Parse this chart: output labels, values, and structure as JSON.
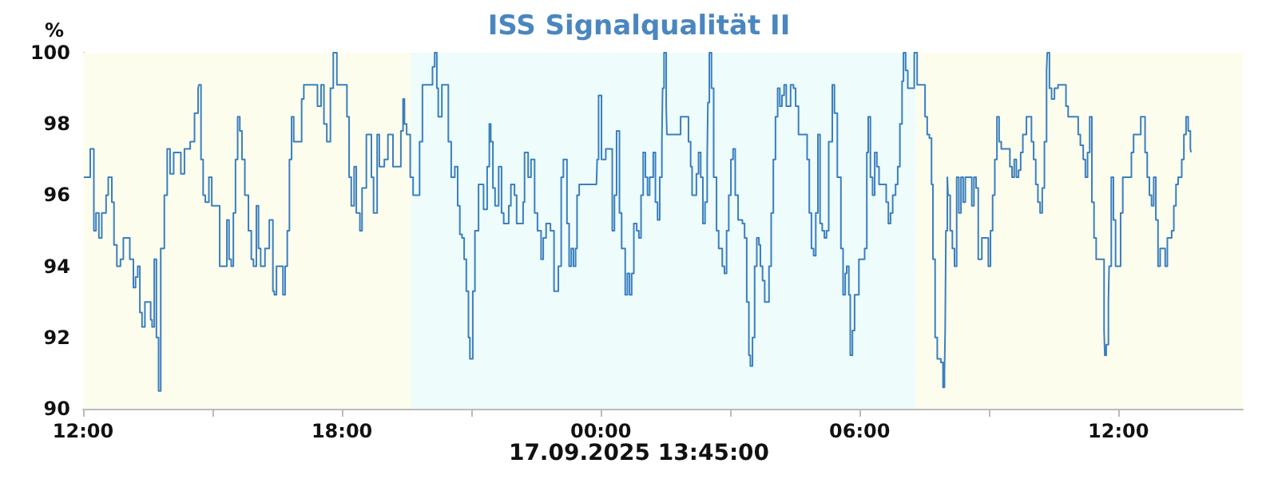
{
  "chart_data": {
    "type": "step",
    "title": "ISS Signalqualität II",
    "ylabel": "%",
    "annotations": [
      "17.09.2025 13:45:00"
    ],
    "xlim": [
      "2025-09-16T12:00",
      "2025-09-17T14:53"
    ],
    "ylim": [
      90,
      100
    ],
    "xticks": [
      {
        "value": "2025-09-16T12:00",
        "label": "12:00"
      },
      {
        "value": "2025-09-16T15:00",
        "label": null
      },
      {
        "value": "2025-09-16T18:00",
        "label": "18:00"
      },
      {
        "value": "2025-09-16T21:00",
        "label": null
      },
      {
        "value": "2025-09-17T00:00",
        "label": "00:00"
      },
      {
        "value": "2025-09-17T03:00",
        "label": null
      },
      {
        "value": "2025-09-17T06:00",
        "label": "06:00"
      },
      {
        "value": "2025-09-17T09:00",
        "label": null
      },
      {
        "value": "2025-09-17T12:00",
        "label": "12:00"
      }
    ],
    "yticks": [
      90,
      {
        "value": 91,
        "label": null
      },
      92,
      {
        "value": 93,
        "label": null
      },
      94,
      {
        "value": 95,
        "label": null
      },
      96,
      {
        "value": 97,
        "label": null
      },
      98,
      {
        "value": 99,
        "label": null
      },
      100
    ],
    "grid": true,
    "marker": "none",
    "line_style": "solid",
    "bands": [
      {
        "axis": "x",
        "from": "2025-09-16T12:00",
        "to": "2025-09-16T19:36",
        "color": "#fdfdee"
      },
      {
        "axis": "x",
        "from": "2025-09-16T19:36",
        "to": "2025-09-17T07:18",
        "color": "#eefcfc"
      },
      {
        "axis": "x",
        "from": "2025-09-17T07:18",
        "to": "2025-09-17T14:53",
        "color": "#fdfdee"
      }
    ],
    "series": [
      {
        "color": "#3a7fbf",
        "x": [
          "2025-09-16T12:01",
          "2025-09-16T12:10",
          "2025-09-16T12:15",
          "2025-09-16T12:18",
          "2025-09-16T12:22",
          "2025-09-16T12:26",
          "2025-09-16T12:32",
          "2025-09-16T12:35",
          "2025-09-16T12:40",
          "2025-09-16T12:43",
          "2025-09-16T12:47",
          "2025-09-16T12:52",
          "2025-09-16T12:56",
          "2025-09-16T13:01",
          "2025-09-16T13:05",
          "2025-09-16T13:10",
          "2025-09-16T13:13",
          "2025-09-16T13:16",
          "2025-09-16T13:19",
          "2025-09-16T13:22",
          "2025-09-16T13:26",
          "2025-09-16T13:31",
          "2025-09-16T13:34",
          "2025-09-16T13:36",
          "2025-09-16T13:39",
          "2025-09-16T13:42",
          "2025-09-16T13:45",
          "2025-09-16T13:48",
          "2025-09-16T13:53",
          "2025-09-16T13:57",
          "2025-09-16T14:01",
          "2025-09-16T14:06",
          "2025-09-16T14:16",
          "2025-09-16T14:21",
          "2025-09-16T14:29",
          "2025-09-16T14:35",
          "2025-09-16T14:40",
          "2025-09-16T14:41",
          "2025-09-16T14:44",
          "2025-09-16T14:47",
          "2025-09-16T14:50",
          "2025-09-16T14:55",
          "2025-09-16T14:59",
          "2025-09-16T15:05",
          "2025-09-16T15:10",
          "2025-09-16T15:16",
          "2025-09-16T15:20",
          "2025-09-16T15:23",
          "2025-09-16T15:26",
          "2025-09-16T15:29",
          "2025-09-16T15:32",
          "2025-09-16T15:35",
          "2025-09-16T15:38",
          "2025-09-16T15:41",
          "2025-09-16T15:45",
          "2025-09-16T15:50",
          "2025-09-16T15:54",
          "2025-09-16T15:57",
          "2025-09-16T16:01",
          "2025-09-16T16:04",
          "2025-09-16T16:07",
          "2025-09-16T16:13",
          "2025-09-16T16:19",
          "2025-09-16T16:24",
          "2025-09-16T16:26",
          "2025-09-16T16:29",
          "2025-09-16T16:34",
          "2025-09-16T16:38",
          "2025-09-16T16:41",
          "2025-09-16T16:44",
          "2025-09-16T16:47",
          "2025-09-16T16:50",
          "2025-09-16T16:53",
          "2025-09-16T16:59",
          "2025-09-16T17:04",
          "2025-09-16T17:07",
          "2025-09-16T17:22",
          "2025-09-16T17:26",
          "2025-09-16T17:31",
          "2025-09-16T17:35",
          "2025-09-16T17:39",
          "2025-09-16T17:44",
          "2025-09-16T17:48",
          "2025-09-16T17:53",
          "2025-09-16T18:04",
          "2025-09-16T18:07",
          "2025-09-16T18:10",
          "2025-09-16T18:13",
          "2025-09-16T18:17",
          "2025-09-16T18:20",
          "2025-09-16T18:25",
          "2025-09-16T18:28",
          "2025-09-16T18:34",
          "2025-09-16T18:38",
          "2025-09-16T18:41",
          "2025-09-16T18:44",
          "2025-09-16T18:49",
          "2025-09-16T18:52",
          "2025-09-16T18:56",
          "2025-09-16T18:59",
          "2025-09-16T19:04",
          "2025-09-16T19:07",
          "2025-09-16T19:11",
          "2025-09-16T19:17",
          "2025-09-16T19:22",
          "2025-09-16T19:25",
          "2025-09-16T19:27",
          "2025-09-16T19:30",
          "2025-09-16T19:35",
          "2025-09-16T19:39",
          "2025-09-16T19:44",
          "2025-09-16T19:48",
          "2025-09-16T19:52",
          "2025-09-16T20:01",
          "2025-09-16T20:06",
          "2025-09-16T20:09",
          "2025-09-16T20:12",
          "2025-09-16T20:14",
          "2025-09-16T20:19",
          "2025-09-16T20:23",
          "2025-09-16T20:28",
          "2025-09-16T20:32",
          "2025-09-16T20:37",
          "2025-09-16T20:41",
          "2025-09-16T20:44",
          "2025-09-16T20:47",
          "2025-09-16T20:50",
          "2025-09-16T20:53",
          "2025-09-16T20:56",
          "2025-09-16T20:58",
          "2025-09-16T21:02",
          "2025-09-16T21:05",
          "2025-09-16T21:10",
          "2025-09-16T21:14",
          "2025-09-16T21:17",
          "2025-09-16T21:22",
          "2025-09-16T21:25",
          "2025-09-16T21:27",
          "2025-09-16T21:30",
          "2025-09-16T21:33",
          "2025-09-16T21:38",
          "2025-09-16T21:42",
          "2025-09-16T21:45",
          "2025-09-16T21:49",
          "2025-09-16T21:52",
          "2025-09-16T21:55",
          "2025-09-16T22:00",
          "2025-09-16T22:03",
          "2025-09-16T22:09",
          "2025-09-16T22:12",
          "2025-09-16T22:14",
          "2025-09-16T22:19",
          "2025-09-16T22:23",
          "2025-09-16T22:28",
          "2025-09-16T22:32",
          "2025-09-16T22:37",
          "2025-09-16T22:40",
          "2025-09-16T22:44",
          "2025-09-16T22:50",
          "2025-09-16T22:55",
          "2025-09-16T22:58",
          "2025-09-16T23:01",
          "2025-09-16T23:05",
          "2025-09-16T23:08",
          "2025-09-16T23:13",
          "2025-09-16T23:16",
          "2025-09-16T23:19",
          "2025-09-16T23:22",
          "2025-09-16T23:25",
          "2025-09-16T23:27",
          "2025-09-16T23:30",
          "2025-09-16T23:54",
          "2025-09-16T23:55",
          "2025-09-16T23:57",
          "2025-09-17T00:01",
          "2025-09-17T00:07",
          "2025-09-17T00:13",
          "2025-09-17T00:16",
          "2025-09-17T00:19",
          "2025-09-17T00:22",
          "2025-09-17T00:26",
          "2025-09-17T00:29",
          "2025-09-17T00:34",
          "2025-09-17T00:37",
          "2025-09-17T00:40",
          "2025-09-17T00:43",
          "2025-09-17T00:46",
          "2025-09-17T00:50",
          "2025-09-17T00:53",
          "2025-09-17T00:56",
          "2025-09-17T00:59",
          "2025-09-17T01:02",
          "2025-09-17T01:05",
          "2025-09-17T01:08",
          "2025-09-17T01:13",
          "2025-09-17T01:16",
          "2025-09-17T01:19",
          "2025-09-17T01:22",
          "2025-09-17T01:25",
          "2025-09-17T01:26",
          "2025-09-17T01:28",
          "2025-09-17T01:31",
          "2025-09-17T01:32",
          "2025-09-17T01:47",
          "2025-09-17T01:51",
          "2025-09-17T01:59",
          "2025-09-17T02:02",
          "2025-09-17T02:05",
          "2025-09-17T02:07",
          "2025-09-17T02:10",
          "2025-09-17T02:13",
          "2025-09-17T02:16",
          "2025-09-17T02:19",
          "2025-09-17T02:22",
          "2025-09-17T02:25",
          "2025-09-17T02:28",
          "2025-09-17T02:29",
          "2025-09-17T02:31",
          "2025-09-17T02:34",
          "2025-09-17T02:37",
          "2025-09-17T02:41",
          "2025-09-17T02:44",
          "2025-09-17T02:49",
          "2025-09-17T02:52",
          "2025-09-17T02:55",
          "2025-09-17T02:58",
          "2025-09-17T03:01",
          "2025-09-17T03:04",
          "2025-09-17T03:07",
          "2025-09-17T03:11",
          "2025-09-17T03:17",
          "2025-09-17T03:20",
          "2025-09-17T03:23",
          "2025-09-17T03:26",
          "2025-09-17T03:28",
          "2025-09-17T03:31",
          "2025-09-17T03:34",
          "2025-09-17T03:37",
          "2025-09-17T03:40",
          "2025-09-17T03:42",
          "2025-09-17T03:45",
          "2025-09-17T03:48",
          "2025-09-17T03:51",
          "2025-09-17T03:54",
          "2025-09-17T03:57",
          "2025-09-17T04:00",
          "2025-09-17T04:03",
          "2025-09-17T04:06",
          "2025-09-17T04:09",
          "2025-09-17T04:12",
          "2025-09-17T04:15",
          "2025-09-17T04:18",
          "2025-09-17T04:21",
          "2025-09-17T04:24",
          "2025-09-17T04:28",
          "2025-09-17T04:31",
          "2025-09-17T04:35",
          "2025-09-17T04:43",
          "2025-09-17T04:47",
          "2025-09-17T04:50",
          "2025-09-17T04:53",
          "2025-09-17T04:56",
          "2025-09-17T04:59",
          "2025-09-17T05:02",
          "2025-09-17T05:05",
          "2025-09-17T05:08",
          "2025-09-17T05:11",
          "2025-09-17T05:14",
          "2025-09-17T05:17",
          "2025-09-17T05:22",
          "2025-09-17T05:25",
          "2025-09-17T05:29",
          "2025-09-17T05:34",
          "2025-09-17T05:37",
          "2025-09-17T05:40",
          "2025-09-17T05:42",
          "2025-09-17T05:45",
          "2025-09-17T05:47",
          "2025-09-17T05:50",
          "2025-09-17T05:53",
          "2025-09-17T05:56",
          "2025-09-17T05:59",
          "2025-09-17T06:02",
          "2025-09-17T06:07",
          "2025-09-17T06:10",
          "2025-09-17T06:12",
          "2025-09-17T06:15",
          "2025-09-17T06:18",
          "2025-09-17T06:21",
          "2025-09-17T06:24",
          "2025-09-17T06:27",
          "2025-09-17T06:32",
          "2025-09-17T06:37",
          "2025-09-17T06:40",
          "2025-09-17T06:43",
          "2025-09-17T06:46",
          "2025-09-17T06:50",
          "2025-09-17T06:53",
          "2025-09-17T06:56",
          "2025-09-17T06:59",
          "2025-09-17T07:01",
          "2025-09-17T07:04",
          "2025-09-17T07:07",
          "2025-09-17T07:11",
          "2025-09-17T07:16",
          "2025-09-17T07:20",
          "2025-09-17T07:28",
          "2025-09-17T07:31",
          "2025-09-17T07:34",
          "2025-09-17T07:37",
          "2025-09-17T07:40",
          "2025-09-17T07:42",
          "2025-09-17T07:45",
          "2025-09-17T07:48",
          "2025-09-17T07:53",
          "2025-09-17T07:56",
          "2025-09-17T07:58",
          "2025-09-17T07:59",
          "2025-09-17T08:00",
          "2025-09-17T08:02",
          "2025-09-17T08:03",
          "2025-09-17T08:06",
          "2025-09-17T08:09",
          "2025-09-17T08:12",
          "2025-09-17T08:15",
          "2025-09-17T08:18",
          "2025-09-17T08:21",
          "2025-09-17T08:24",
          "2025-09-17T08:27",
          "2025-09-17T08:31",
          "2025-09-17T08:36",
          "2025-09-17T08:39",
          "2025-09-17T08:42",
          "2025-09-17T08:45",
          "2025-09-17T08:47",
          "2025-09-17T08:50",
          "2025-09-17T08:55",
          "2025-09-17T08:59",
          "2025-09-17T09:02",
          "2025-09-17T09:05",
          "2025-09-17T09:08",
          "2025-09-17T09:11",
          "2025-09-17T09:14",
          "2025-09-17T09:17",
          "2025-09-17T09:25",
          "2025-09-17T09:29",
          "2025-09-17T09:32",
          "2025-09-17T09:35",
          "2025-09-17T09:38",
          "2025-09-17T09:41",
          "2025-09-17T09:44",
          "2025-09-17T09:47",
          "2025-09-17T09:52",
          "2025-09-17T09:56",
          "2025-09-17T09:59",
          "2025-09-17T10:02",
          "2025-09-17T10:05",
          "2025-09-17T10:08",
          "2025-09-17T10:11",
          "2025-09-17T10:14",
          "2025-09-17T10:17",
          "2025-09-17T10:20",
          "2025-09-17T10:21",
          "2025-09-17T10:24",
          "2025-09-17T10:27",
          "2025-09-17T10:31",
          "2025-09-17T10:36",
          "2025-09-17T10:45",
          "2025-09-17T10:47",
          "2025-09-17T10:50",
          "2025-09-17T11:01",
          "2025-09-17T11:04",
          "2025-09-17T11:07",
          "2025-09-17T11:11",
          "2025-09-17T11:14",
          "2025-09-17T11:17",
          "2025-09-17T11:20",
          "2025-09-17T11:23",
          "2025-09-17T11:26",
          "2025-09-17T11:29",
          "2025-09-17T11:37",
          "2025-09-17T11:40",
          "2025-09-17T11:41",
          "2025-09-17T11:43",
          "2025-09-17T11:46",
          "2025-09-17T11:47",
          "2025-09-17T11:50",
          "2025-09-17T11:53",
          "2025-09-17T11:56",
          "2025-09-17T12:00",
          "2025-09-17T12:03",
          "2025-09-17T12:06",
          "2025-09-17T12:15",
          "2025-09-17T12:18",
          "2025-09-17T12:21",
          "2025-09-17T12:28",
          "2025-09-17T12:31",
          "2025-09-17T12:34",
          "2025-09-17T12:37",
          "2025-09-17T12:40",
          "2025-09-17T12:43",
          "2025-09-17T12:46",
          "2025-09-17T12:49",
          "2025-09-17T12:52",
          "2025-09-17T12:55",
          "2025-09-17T12:58",
          "2025-09-17T13:02",
          "2025-09-17T13:05",
          "2025-09-17T13:08",
          "2025-09-17T13:14",
          "2025-09-17T13:17",
          "2025-09-17T13:20",
          "2025-09-17T13:23",
          "2025-09-17T13:28",
          "2025-09-17T13:31",
          "2025-09-17T13:34",
          "2025-09-17T13:37",
          "2025-09-17T13:40",
          "2025-09-17T13:41"
        ],
        "values": [
          96.5,
          97.3,
          95,
          95.5,
          94.8,
          95.5,
          96,
          96.5,
          95.8,
          94.6,
          94,
          94.2,
          94.8,
          94.8,
          94.2,
          93.4,
          93.7,
          94,
          92.7,
          92.3,
          93,
          93,
          92.5,
          92.3,
          94.2,
          92,
          90.5,
          94.5,
          96,
          97.3,
          96.6,
          97.2,
          96.6,
          97.3,
          97.5,
          98.3,
          99,
          99.1,
          97,
          96,
          95.8,
          96.5,
          95.7,
          95.7,
          94,
          94,
          95.3,
          94.2,
          94,
          95.5,
          97,
          98.2,
          97.8,
          97,
          96,
          95,
          94.2,
          94,
          95.7,
          94.5,
          94,
          94.5,
          95.3,
          93.3,
          93.2,
          94,
          94,
          93.2,
          94,
          95,
          97,
          98.2,
          97.5,
          97.5,
          98.7,
          99.1,
          99.1,
          98.5,
          99.1,
          98,
          97.5,
          99,
          100,
          99.1,
          99.1,
          98.2,
          96.5,
          95.7,
          96.8,
          95.5,
          95,
          96.2,
          97.7,
          97.7,
          96.5,
          95.5,
          97.7,
          96.8,
          96.8,
          97,
          97.7,
          97.7,
          96.8,
          96.8,
          97.8,
          98.7,
          98,
          97.7,
          96.5,
          96,
          96,
          97.5,
          99.1,
          99.1,
          99.6,
          100,
          99,
          98.2,
          99.1,
          99.1,
          97.5,
          96.5,
          96.8,
          95.7,
          94.9,
          94.8,
          94.2,
          93.3,
          92,
          91.4,
          93.3,
          95,
          96.3,
          96.3,
          95.6,
          96.8,
          98,
          97.5,
          96.2,
          95.7,
          96.8,
          95.5,
          95.2,
          95.2,
          95.7,
          96.3,
          96,
          95.2,
          95.2,
          95.8,
          97.2,
          96.5,
          97,
          95.5,
          95,
          94.2,
          94.8,
          95.2,
          95,
          93.3,
          93.3,
          94,
          96.5,
          97,
          95.2,
          94,
          94.5,
          94,
          94.5,
          96,
          96.3,
          96.3,
          97,
          98.8,
          97,
          97.3,
          97.3,
          95,
          96,
          97.8,
          95.5,
          94.5,
          93.2,
          93.8,
          93.2,
          93.8,
          95.2,
          95,
          94.8,
          96,
          97.2,
          96.5,
          96,
          96.5,
          97.2,
          95.8,
          95.3,
          96.5,
          97.5,
          99,
          100,
          98.5,
          97.7,
          97.7,
          98.2,
          98.2,
          97.5,
          96.8,
          96,
          96,
          96.6,
          97.2,
          96.5,
          95.2,
          95.8,
          97,
          98.6,
          100,
          99,
          96.5,
          95,
          94.5,
          94,
          93.8,
          95,
          96,
          97,
          97.3,
          96,
          95.3,
          95.2,
          94.8,
          93,
          91.5,
          91.2,
          92,
          94,
          94.8,
          94.6,
          94,
          93.6,
          93,
          93,
          94,
          95.5,
          97,
          98.2,
          99,
          98.5,
          98.8,
          99.1,
          98.5,
          98.5,
          99.1,
          99,
          98.5,
          97.7,
          97.7,
          97,
          95.5,
          94.5,
          94.3,
          95.5,
          97.7,
          95.2,
          95,
          94.8,
          95,
          97.5,
          99.1,
          98.3,
          96.5,
          94.5,
          93.2,
          93.8,
          94,
          93.2,
          91.5,
          92.2,
          93.2,
          93.2,
          94.2,
          94.2,
          94.5,
          97.2,
          98.2,
          96.5,
          96,
          97.2,
          96.8,
          96.3,
          96.3,
          95.8,
          95.2,
          95.5,
          96,
          96.3,
          96.8,
          98,
          99.2,
          100,
          99.5,
          99,
          99,
          100,
          99.1,
          99.1,
          98.2,
          97.7,
          97.6,
          96.3,
          94.2,
          92,
          91.4,
          91.3,
          90.6,
          91,
          92.2,
          95,
          96.5,
          96,
          95,
          94.5,
          94,
          96.5,
          95.5,
          96.5,
          95.8,
          96.5,
          96.5,
          95.7,
          96.5,
          96.2,
          94.2,
          94.2,
          94.8,
          94.8,
          94,
          95,
          96,
          97,
          98.2,
          97.5,
          97.3,
          97.3,
          96.8,
          96.5,
          97,
          96.5,
          96.7,
          97.2,
          97.7,
          98.2,
          98.2,
          97.5,
          97,
          96.3,
          95.8,
          95.5,
          96.2,
          97.5,
          99.5,
          100,
          99,
          98.7,
          99,
          99.1,
          99.1,
          98.5,
          98.2,
          98.2,
          97.7,
          97.4,
          97,
          96.5,
          97.2,
          98.2,
          95.8,
          94.8,
          94.2,
          94.2,
          92.2,
          91.5,
          91.8,
          93,
          94,
          96.5,
          95.3,
          94,
          94,
          95.5,
          96.5,
          96.5,
          97.2,
          97.7,
          97.7,
          98.2,
          98.2,
          97.2,
          96.5,
          96,
          95.7,
          96.5,
          95.3,
          94,
          94.5,
          94.5,
          94,
          94.8,
          95,
          95.7,
          96.3,
          96.5,
          97,
          97.7,
          98.2,
          97.8,
          97.3,
          97.2
        ]
      }
    ]
  }
}
